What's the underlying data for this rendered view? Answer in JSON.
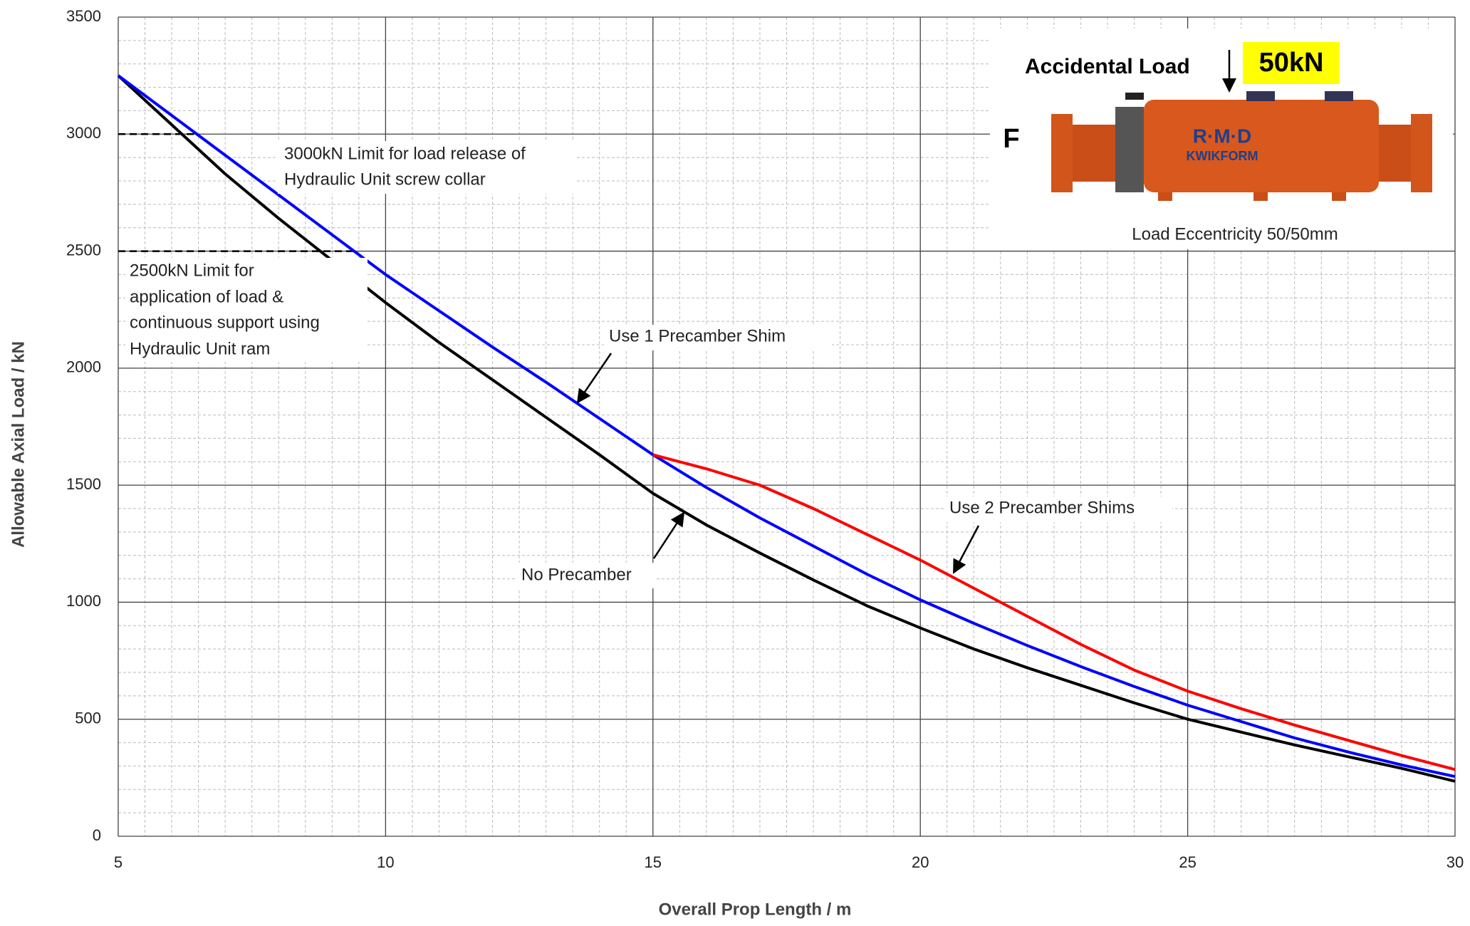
{
  "chart_data": {
    "type": "line",
    "x_label": "Overall Prop Length / m",
    "y_label": "Allowable Axial Load / kN",
    "x": [
      5,
      6,
      7,
      8,
      9,
      10,
      11,
      12,
      13,
      14,
      15,
      16,
      17,
      18,
      19,
      20,
      21,
      22,
      23,
      24,
      25,
      26,
      27,
      28,
      29,
      30
    ],
    "series": [
      {
        "color": "#000000",
        "values": [
          3250,
          3040,
          2830,
          2640,
          2460,
          2280,
          2110,
          1950,
          1790,
          1630,
          1465,
          1330,
          1210,
          1095,
          985,
          890,
          800,
          720,
          645,
          570,
          500,
          445,
          390,
          340,
          290,
          235
        ]
      },
      {
        "color": "#0000ff",
        "values": [
          3250,
          3080,
          2910,
          2740,
          2570,
          2400,
          2245,
          2090,
          1940,
          1785,
          1630,
          1490,
          1360,
          1240,
          1120,
          1010,
          910,
          815,
          725,
          640,
          560,
          490,
          420,
          360,
          305,
          255
        ]
      },
      {
        "color": "#ff0000",
        "values": [
          null,
          null,
          null,
          null,
          null,
          null,
          null,
          null,
          null,
          null,
          1630,
          1570,
          1500,
          1400,
          1290,
          1180,
          1060,
          940,
          820,
          710,
          620,
          545,
          475,
          410,
          345,
          285
        ]
      }
    ],
    "xlim": [
      5,
      30
    ],
    "xticks": [
      5,
      10,
      15,
      20,
      25,
      30
    ],
    "ylim": [
      0,
      3500
    ],
    "yticks": [
      0,
      500,
      1000,
      1500,
      2000,
      2500,
      3000,
      3500
    ],
    "grid": true,
    "x_minor_step": 0.5,
    "y_minor_step": 100,
    "limit_lines": [
      3000,
      2500
    ],
    "annotations": {
      "limit_3000": [
        "3000kN Limit for load release of",
        "Hydraulic Unit screw collar"
      ],
      "limit_2500": [
        "2500kN Limit for",
        "application of load &",
        "continuous support  using",
        "Hydraulic Unit ram"
      ],
      "one_shim": "Use 1 Precamber Shim",
      "two_shims": "Use 2 Precamber Shims",
      "no_precamber": "No Precamber"
    },
    "inset": {
      "load_label": "Accidental Load",
      "load_value": "50kN",
      "force": "F",
      "brand": "R·M·D",
      "product": "KWIKFORM",
      "eccentricity": "Load Eccentricity 50/50mm"
    }
  }
}
